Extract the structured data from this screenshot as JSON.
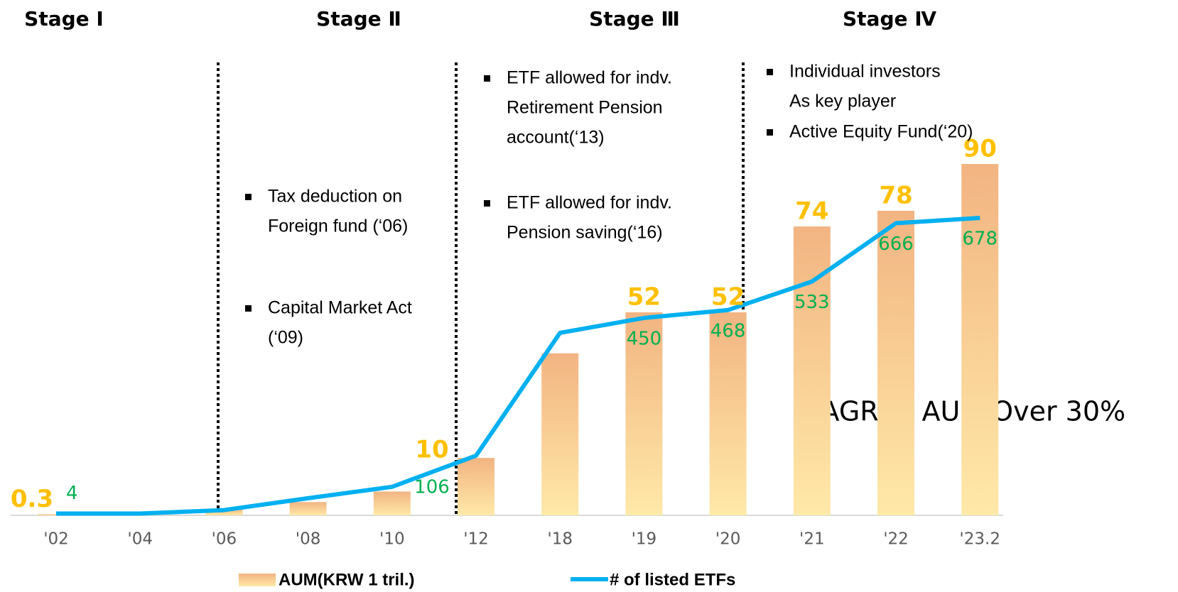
{
  "chart_data": {
    "type": "bar_line",
    "categories": [
      "'02",
      "'04",
      "'06",
      "'08",
      "'10",
      "'12",
      "'18",
      "'19",
      "'20",
      "'21",
      "'22",
      "'23.2"
    ],
    "series": [
      {
        "name": "AUM(KRW 1 tril.)",
        "type": "bar",
        "color": "#f2b482",
        "values": [
          0.3,
          0.5,
          1.7,
          3.4,
          6.1,
          14.7,
          41.5,
          52,
          52,
          74,
          78,
          90
        ],
        "value_labels": [
          "0.3",
          null,
          null,
          null,
          null,
          null,
          null,
          "52",
          "52",
          "74",
          "78",
          "90"
        ]
      },
      {
        "name": "# of listed ETFs",
        "type": "line",
        "axis": "y2",
        "color": "#00b0f0",
        "values": [
          4,
          4,
          12,
          39,
          65,
          136,
          416,
          450,
          468,
          533,
          666,
          678
        ],
        "value_labels": [
          "4",
          null,
          null,
          null,
          null,
          null,
          null,
          "450",
          "468",
          "533",
          "666",
          "678"
        ]
      }
    ],
    "ylim": [
      0,
      100
    ],
    "y2lim": [
      0,
      890
    ],
    "annotations": [
      "10",
      "106",
      "CAGR of AUM Over 30%"
    ],
    "stages": [
      {
        "title": "Stage Ⅰ",
        "notes": []
      },
      {
        "title": "Stage Ⅱ",
        "notes": [
          [
            "Tax deduction on",
            "Foreign fund (‘06)"
          ],
          [
            "Capital Market Act",
            "(‘09)"
          ]
        ]
      },
      {
        "title": "Stage Ⅲ",
        "notes": [
          [
            "ETF allowed for indv.",
            "Retirement Pension",
            "account(‘13)"
          ],
          [
            "ETF allowed for indv.",
            "Pension saving(‘16)"
          ]
        ]
      },
      {
        "title": "Stage Ⅳ",
        "notes": [
          [
            "Individual investors",
            "As key player"
          ],
          [
            "Active Equity Fund(‘20)"
          ]
        ]
      }
    ]
  }
}
